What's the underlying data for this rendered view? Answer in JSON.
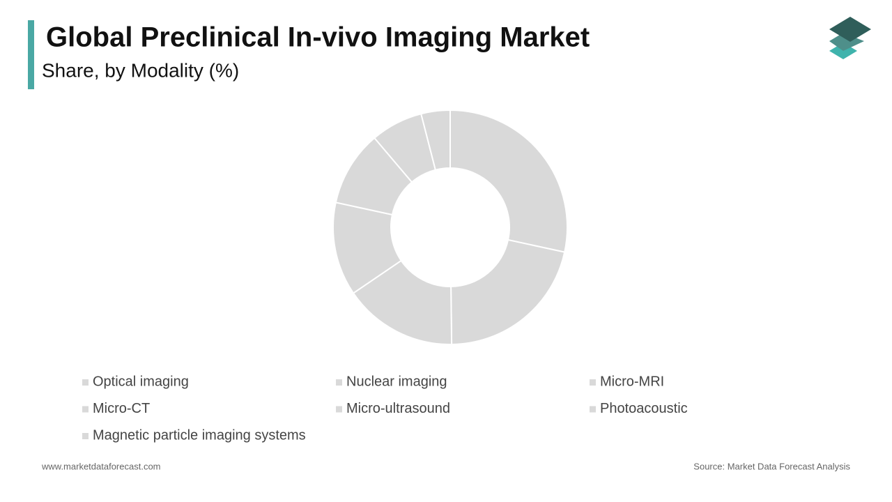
{
  "chart_data": {
    "type": "pie",
    "title": "Global Preclinical In-vivo Imaging Market",
    "subtitle": "Share, by Modality (%)",
    "categories": [
      "Optical imaging",
      "Nuclear imaging",
      "Micro-MRI",
      "Micro-CT",
      "Micro-ultrasound",
      "Photoacoustic",
      "Magnetic particle imaging systems"
    ],
    "values": [
      28.4,
      21.4,
      15.7,
      12.9,
      10.4,
      7.2,
      4.0
    ],
    "color": "#d9d9d9",
    "donut": true
  },
  "footer": {
    "website": "www.marketdataforecast.com",
    "source": "Source: Market Data Forecast Analysis"
  }
}
